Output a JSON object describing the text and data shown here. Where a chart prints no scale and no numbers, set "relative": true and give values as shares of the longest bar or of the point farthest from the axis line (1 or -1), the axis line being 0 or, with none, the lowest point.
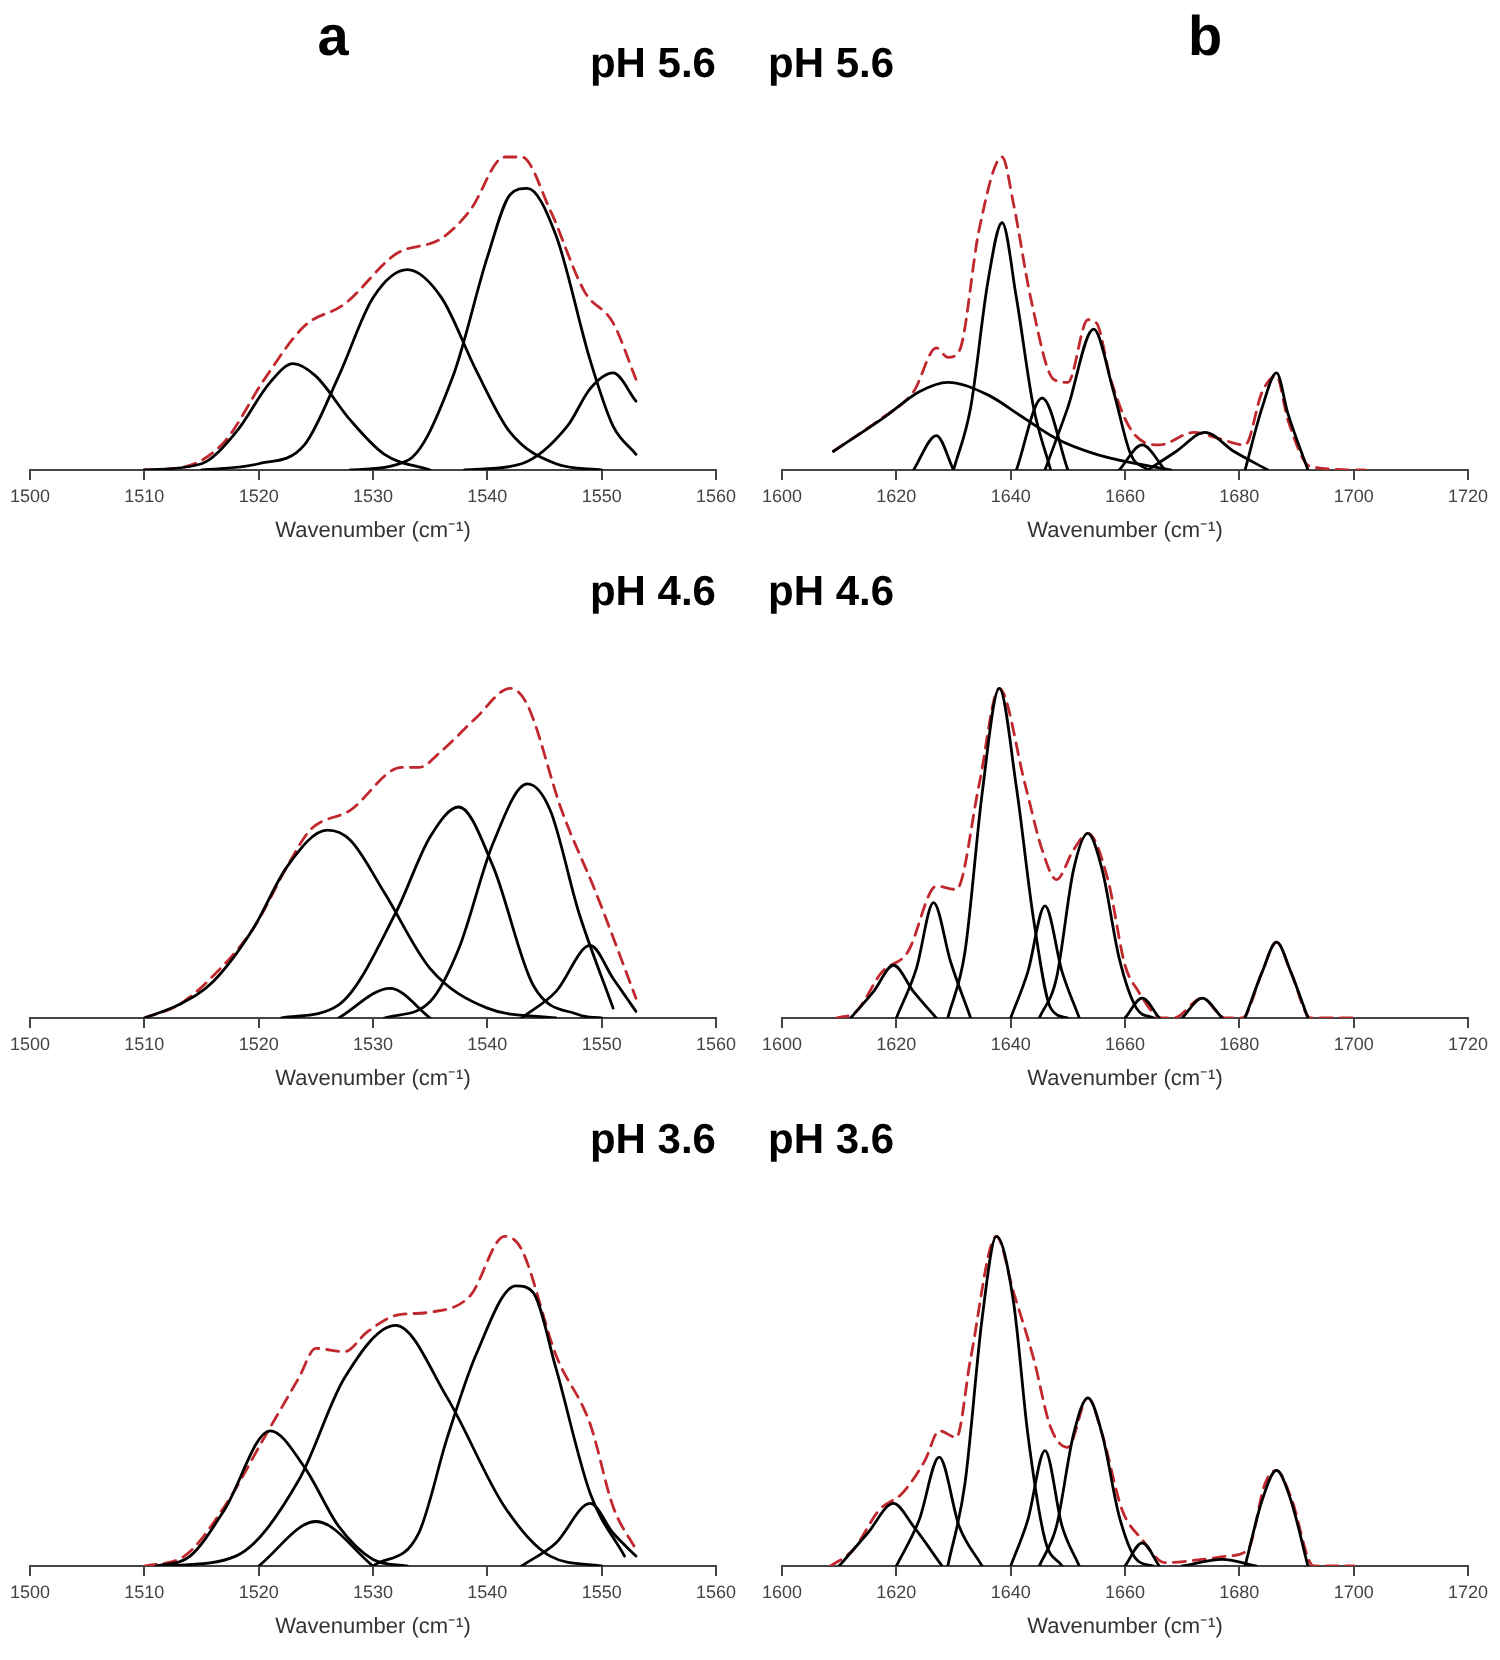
{
  "chart_data": [
    {
      "type": "line",
      "title": "pH 5.6",
      "annotations": [
        "a"
      ],
      "xlabel": "Wavenumber (cm⁻¹)",
      "relative": true,
      "xlim": [
        1500,
        1560
      ],
      "xticks": [
        1500,
        1510,
        1520,
        1530,
        1540,
        1550,
        1560
      ],
      "grid": false,
      "legend": false,
      "marker": "none",
      "series": [
        {
          "color": "#000000",
          "x": [
            1510,
            1515,
            1518,
            1521,
            1523,
            1525,
            1528,
            1531,
            1535
          ],
          "values": [
            0,
            0.02,
            0.12,
            0.28,
            0.34,
            0.3,
            0.16,
            0.05,
            0
          ]
        },
        {
          "color": "#000000",
          "x": [
            1515,
            1520,
            1524,
            1527,
            1530,
            1533,
            1536,
            1539,
            1542,
            1546,
            1550
          ],
          "values": [
            0,
            0.02,
            0.08,
            0.3,
            0.55,
            0.64,
            0.55,
            0.32,
            0.12,
            0.02,
            0
          ]
        },
        {
          "color": "#000000",
          "x": [
            1528,
            1533,
            1537,
            1540,
            1542,
            1543.5,
            1546,
            1549,
            1551,
            1553
          ],
          "values": [
            0,
            0.03,
            0.3,
            0.68,
            0.88,
            0.9,
            0.75,
            0.35,
            0.14,
            0.05
          ]
        },
        {
          "color": "#000000",
          "x": [
            1538,
            1543,
            1547,
            1549,
            1551,
            1553
          ],
          "values": [
            0,
            0.02,
            0.14,
            0.26,
            0.31,
            0.22
          ]
        },
        {
          "color": "#c0282d",
          "line_style": "dashed",
          "x": [
            1510,
            1513.5,
            1517,
            1520.5,
            1524,
            1527.5,
            1532,
            1536,
            1538.5,
            1541.5,
            1543,
            1545.5,
            1548.5,
            1551,
            1553
          ],
          "values": [
            0,
            0.01,
            0.09,
            0.29,
            0.46,
            0.53,
            0.69,
            0.74,
            0.83,
            1,
            1,
            0.83,
            0.57,
            0.47,
            0.29
          ]
        }
      ]
    },
    {
      "type": "line",
      "title": "pH 5.6",
      "annotations": [
        "b"
      ],
      "xlabel": "Wavenumber (cm⁻¹)",
      "relative": true,
      "xlim": [
        1600,
        1720
      ],
      "xticks": [
        1600,
        1620,
        1640,
        1660,
        1680,
        1700,
        1720
      ],
      "grid": false,
      "legend": false,
      "marker": "none",
      "series": [
        {
          "color": "#000000",
          "x": [
            1609,
            1618,
            1624,
            1629,
            1636,
            1642,
            1648,
            1655,
            1662,
            1668
          ],
          "values": [
            0.06,
            0.17,
            0.25,
            0.28,
            0.24,
            0.17,
            0.1,
            0.05,
            0.02,
            0
          ]
        },
        {
          "color": "#000000",
          "x": [
            1623,
            1627,
            1630
          ],
          "values": [
            0,
            0.11,
            0
          ]
        },
        {
          "color": "#000000",
          "x": [
            1630,
            1633,
            1636,
            1638.5,
            1641,
            1644,
            1647
          ],
          "values": [
            0,
            0.2,
            0.6,
            0.79,
            0.55,
            0.2,
            0
          ]
        },
        {
          "color": "#000000",
          "x": [
            1641,
            1645.5,
            1650
          ],
          "values": [
            0,
            0.23,
            0
          ]
        },
        {
          "color": "#000000",
          "x": [
            1646,
            1650,
            1654.5,
            1658,
            1661,
            1664
          ],
          "values": [
            0,
            0.2,
            0.45,
            0.25,
            0.05,
            0
          ]
        },
        {
          "color": "#000000",
          "x": [
            1659,
            1663,
            1667
          ],
          "values": [
            0,
            0.08,
            0
          ]
        },
        {
          "color": "#000000",
          "x": [
            1664,
            1669,
            1674,
            1679,
            1685
          ],
          "values": [
            0,
            0.06,
            0.12,
            0.06,
            0
          ]
        },
        {
          "color": "#000000",
          "x": [
            1681,
            1684,
            1686.5,
            1688.5,
            1692
          ],
          "values": [
            0,
            0.2,
            0.31,
            0.18,
            0
          ]
        },
        {
          "color": "#c0282d",
          "line_style": "dashed",
          "x": [
            1609,
            1617,
            1623,
            1627,
            1629,
            1631,
            1634.5,
            1638.5,
            1640.5,
            1643.5,
            1647.5,
            1650,
            1653.5,
            1655,
            1657.5,
            1661,
            1666,
            1672,
            1676.5,
            1681,
            1684,
            1686.5,
            1688.5,
            1692.5,
            1702
          ],
          "values": [
            0.06,
            0.16,
            0.25,
            0.39,
            0.36,
            0.38,
            0.77,
            1,
            0.85,
            0.55,
            0.29,
            0.28,
            0.48,
            0.47,
            0.29,
            0.13,
            0.08,
            0.12,
            0.1,
            0.08,
            0.25,
            0.3,
            0.16,
            0.01,
            0
          ]
        }
      ]
    },
    {
      "type": "line",
      "title": "pH 4.6",
      "xlabel": "Wavenumber (cm⁻¹)",
      "relative": true,
      "xlim": [
        1500,
        1560
      ],
      "xticks": [
        1500,
        1510,
        1520,
        1530,
        1540,
        1550,
        1560
      ],
      "grid": false,
      "legend": false,
      "marker": "none",
      "series": [
        {
          "color": "#000000",
          "x": [
            1510,
            1513,
            1516,
            1519.5,
            1522.5,
            1526,
            1528,
            1531,
            1535,
            1540,
            1546
          ],
          "values": [
            0,
            0.04,
            0.11,
            0.27,
            0.46,
            0.57,
            0.54,
            0.38,
            0.15,
            0.03,
            0
          ]
        },
        {
          "color": "#000000",
          "x": [
            1527,
            1531.5,
            1535
          ],
          "values": [
            0,
            0.09,
            0
          ]
        },
        {
          "color": "#000000",
          "x": [
            1522,
            1527,
            1532,
            1535,
            1537.5,
            1540.5,
            1544,
            1548,
            1550
          ],
          "values": [
            0,
            0.04,
            0.32,
            0.55,
            0.64,
            0.46,
            0.1,
            0.01,
            0
          ]
        },
        {
          "color": "#000000",
          "x": [
            1531,
            1535,
            1537.5,
            1540.5,
            1543.5,
            1545.5,
            1548,
            1551
          ],
          "values": [
            0,
            0.05,
            0.21,
            0.53,
            0.71,
            0.63,
            0.32,
            0.03
          ]
        },
        {
          "color": "#000000",
          "x": [
            1543,
            1546,
            1549,
            1551,
            1553
          ],
          "values": [
            0,
            0.08,
            0.22,
            0.12,
            0.02
          ]
        },
        {
          "color": "#c0282d",
          "line_style": "dashed",
          "x": [
            1510,
            1513,
            1515.5,
            1519.5,
            1522.5,
            1524.5,
            1528,
            1532.5,
            1534,
            1536,
            1539,
            1542,
            1543.5,
            1546.5,
            1549.5,
            1553
          ],
          "values": [
            0,
            0.04,
            0.11,
            0.27,
            0.46,
            0.57,
            0.63,
            0.76,
            0.76,
            0.81,
            0.91,
            1,
            0.95,
            0.63,
            0.38,
            0.06
          ]
        }
      ]
    },
    {
      "type": "line",
      "title": "pH 4.6",
      "xlabel": "Wavenumber (cm⁻¹)",
      "relative": true,
      "xlim": [
        1600,
        1720
      ],
      "xticks": [
        1600,
        1620,
        1640,
        1660,
        1680,
        1700,
        1720
      ],
      "grid": false,
      "legend": false,
      "marker": "none",
      "series": [
        {
          "color": "#000000",
          "x": [
            1612,
            1616,
            1619.5,
            1623,
            1627
          ],
          "values": [
            0,
            0.08,
            0.16,
            0.08,
            0
          ]
        },
        {
          "color": "#000000",
          "x": [
            1620,
            1623.5,
            1626.5,
            1629.5,
            1633
          ],
          "values": [
            0,
            0.15,
            0.35,
            0.17,
            0
          ]
        },
        {
          "color": "#000000",
          "x": [
            1629,
            1632,
            1635,
            1638,
            1641,
            1644,
            1647,
            1650
          ],
          "values": [
            0,
            0.2,
            0.68,
            1,
            0.7,
            0.3,
            0.03,
            0
          ]
        },
        {
          "color": "#000000",
          "x": [
            1640,
            1643,
            1646,
            1649,
            1652
          ],
          "values": [
            0,
            0.14,
            0.34,
            0.14,
            0
          ]
        },
        {
          "color": "#000000",
          "x": [
            1645,
            1648,
            1651,
            1653.5,
            1656,
            1659,
            1662,
            1665
          ],
          "values": [
            0,
            0.12,
            0.45,
            0.56,
            0.45,
            0.18,
            0.03,
            0
          ]
        },
        {
          "color": "#000000",
          "x": [
            1660,
            1663,
            1666
          ],
          "values": [
            0,
            0.06,
            0
          ]
        },
        {
          "color": "#000000",
          "x": [
            1670,
            1673.5,
            1677
          ],
          "values": [
            0,
            0.06,
            0
          ]
        },
        {
          "color": "#000000",
          "x": [
            1681,
            1684,
            1686.5,
            1689,
            1692
          ],
          "values": [
            0,
            0.14,
            0.23,
            0.14,
            0
          ]
        },
        {
          "color": "#c0282d",
          "line_style": "dashed",
          "x": [
            1609.5,
            1613,
            1617.5,
            1622,
            1627,
            1630.5,
            1634.5,
            1638,
            1642.5,
            1645.5,
            1648,
            1651,
            1653.5,
            1657,
            1660,
            1662,
            1666.5,
            1668.5,
            1673.5,
            1677.5,
            1680.5,
            1684,
            1686.5,
            1689,
            1692.5,
            1700
          ],
          "values": [
            0,
            0.02,
            0.14,
            0.2,
            0.4,
            0.39,
            0.71,
            1,
            0.71,
            0.51,
            0.42,
            0.51,
            0.56,
            0.42,
            0.16,
            0.09,
            0,
            0,
            0.06,
            0,
            0,
            0.14,
            0.23,
            0.14,
            0,
            0
          ]
        }
      ]
    },
    {
      "type": "line",
      "title": "pH 3.6",
      "xlabel": "Wavenumber (cm⁻¹)",
      "relative": true,
      "xlim": [
        1500,
        1560
      ],
      "xticks": [
        1500,
        1510,
        1520,
        1530,
        1540,
        1550,
        1560
      ],
      "grid": false,
      "legend": false,
      "marker": "none",
      "series": [
        {
          "color": "#000000",
          "x": [
            1511,
            1514,
            1517,
            1521,
            1524,
            1527,
            1530,
            1533
          ],
          "values": [
            0,
            0.03,
            0.17,
            0.41,
            0.3,
            0.12,
            0.02,
            0
          ]
        },
        {
          "color": "#000000",
          "x": [
            1520,
            1525,
            1530
          ],
          "values": [
            0,
            0.135,
            0
          ]
        },
        {
          "color": "#000000",
          "x": [
            1512,
            1518,
            1523.5,
            1527.5,
            1532,
            1536.5,
            1541.5,
            1545.5,
            1550
          ],
          "values": [
            0,
            0.03,
            0.26,
            0.57,
            0.73,
            0.51,
            0.18,
            0.03,
            0
          ]
        },
        {
          "color": "#000000",
          "x": [
            1530,
            1534,
            1536.5,
            1539,
            1542.5,
            1544,
            1546,
            1549,
            1552
          ],
          "values": [
            0,
            0.1,
            0.39,
            0.64,
            0.85,
            0.83,
            0.6,
            0.22,
            0.03
          ]
        },
        {
          "color": "#000000",
          "x": [
            1543,
            1546,
            1549,
            1551,
            1553
          ],
          "values": [
            0,
            0.07,
            0.19,
            0.1,
            0.03
          ]
        },
        {
          "color": "#c0282d",
          "line_style": "dashed",
          "x": [
            1510,
            1513.5,
            1517,
            1520.5,
            1523.5,
            1525,
            1527.5,
            1529.5,
            1532,
            1535,
            1538.5,
            1541.5,
            1543,
            1546,
            1549,
            1551,
            1553
          ],
          "values": [
            0,
            0.03,
            0.18,
            0.39,
            0.57,
            0.66,
            0.65,
            0.71,
            0.76,
            0.77,
            0.82,
            1,
            0.96,
            0.64,
            0.43,
            0.18,
            0.05
          ]
        }
      ]
    },
    {
      "type": "line",
      "title": "pH 3.6",
      "xlabel": "Wavenumber (cm⁻¹)",
      "relative": true,
      "xlim": [
        1600,
        1720
      ],
      "xticks": [
        1600,
        1620,
        1640,
        1660,
        1680,
        1700,
        1720
      ],
      "grid": false,
      "legend": false,
      "marker": "none",
      "series": [
        {
          "color": "#000000",
          "x": [
            1610,
            1615,
            1619.5,
            1623,
            1628
          ],
          "values": [
            0,
            0.1,
            0.19,
            0.12,
            0
          ]
        },
        {
          "color": "#000000",
          "x": [
            1620,
            1624,
            1627.5,
            1631,
            1635
          ],
          "values": [
            0,
            0.14,
            0.33,
            0.12,
            0
          ]
        },
        {
          "color": "#000000",
          "x": [
            1629,
            1632,
            1635,
            1637.5,
            1640.5,
            1643,
            1646,
            1649
          ],
          "values": [
            0,
            0.25,
            0.75,
            1,
            0.8,
            0.4,
            0.08,
            0
          ]
        },
        {
          "color": "#000000",
          "x": [
            1640,
            1643,
            1646,
            1649,
            1652
          ],
          "values": [
            0,
            0.14,
            0.35,
            0.12,
            0
          ]
        },
        {
          "color": "#000000",
          "x": [
            1645,
            1648,
            1651,
            1653.5,
            1656,
            1659,
            1662,
            1665
          ],
          "values": [
            0,
            0.12,
            0.4,
            0.51,
            0.4,
            0.15,
            0.02,
            0
          ]
        },
        {
          "color": "#000000",
          "x": [
            1660,
            1663,
            1666
          ],
          "values": [
            0,
            0.07,
            0
          ]
        },
        {
          "color": "#000000",
          "x": [
            1670,
            1677,
            1683
          ],
          "values": [
            0,
            0.02,
            0
          ]
        },
        {
          "color": "#000000",
          "x": [
            1681,
            1684,
            1686.5,
            1689,
            1692
          ],
          "values": [
            0,
            0.2,
            0.29,
            0.2,
            0
          ]
        },
        {
          "color": "#c0282d",
          "line_style": "dashed",
          "x": [
            1608.5,
            1612.5,
            1617,
            1621,
            1625,
            1627.5,
            1630.5,
            1633,
            1637.5,
            1640.5,
            1644,
            1647,
            1650,
            1653.5,
            1656,
            1659.5,
            1663,
            1667,
            1673.5,
            1678,
            1681.5,
            1684.5,
            1686.5,
            1689,
            1693,
            1700
          ],
          "values": [
            0,
            0.05,
            0.17,
            0.22,
            0.32,
            0.41,
            0.39,
            0.63,
            1,
            0.83,
            0.63,
            0.42,
            0.36,
            0.51,
            0.4,
            0.17,
            0.08,
            0.01,
            0.02,
            0.03,
            0.05,
            0.25,
            0.29,
            0.21,
            0,
            0
          ]
        }
      ]
    }
  ]
}
